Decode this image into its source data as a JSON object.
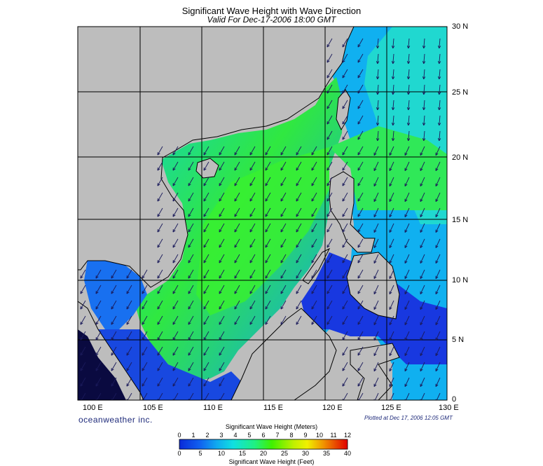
{
  "title": "Significant Wave Height with Wave Direction",
  "subtitle": "Valid For Dec-17-2006 18:00 GMT",
  "lat_labels": [
    "30 N",
    "25 N",
    "20 N",
    "15 N",
    "10 N",
    "5 N",
    "0"
  ],
  "lon_labels": [
    "100 E",
    "105 E",
    "110 E",
    "115 E",
    "120 E",
    "125 E",
    "130 E"
  ],
  "brand": "oceanweather inc.",
  "plotted": "Plotted at Dec 17, 2006 12:05 GMT",
  "legend": {
    "meters_title": "Significant Wave Height (Meters)",
    "feet_title": "Significant Wave Height (Feet)",
    "meters_ticks": [
      "0",
      "1",
      "2",
      "3",
      "4",
      "5",
      "6",
      "7",
      "8",
      "9",
      "10",
      "11",
      "12"
    ],
    "feet_ticks": [
      "0",
      "5",
      "10",
      "15",
      "20",
      "25",
      "30",
      "35",
      "40"
    ],
    "colors": [
      "#0a2ad8",
      "#1060f0",
      "#10a8f0",
      "#10e0e0",
      "#20f080",
      "#40f000",
      "#a0f000",
      "#f0f000",
      "#f0c000",
      "#f08000",
      "#f04000",
      "#e00000"
    ]
  },
  "colors": {
    "land": "#bdbdbd",
    "deep_water": "#1428d8",
    "mid_water": "#10c0e0",
    "high_water": "#30e830",
    "arrow": "#1a1a5a"
  }
}
